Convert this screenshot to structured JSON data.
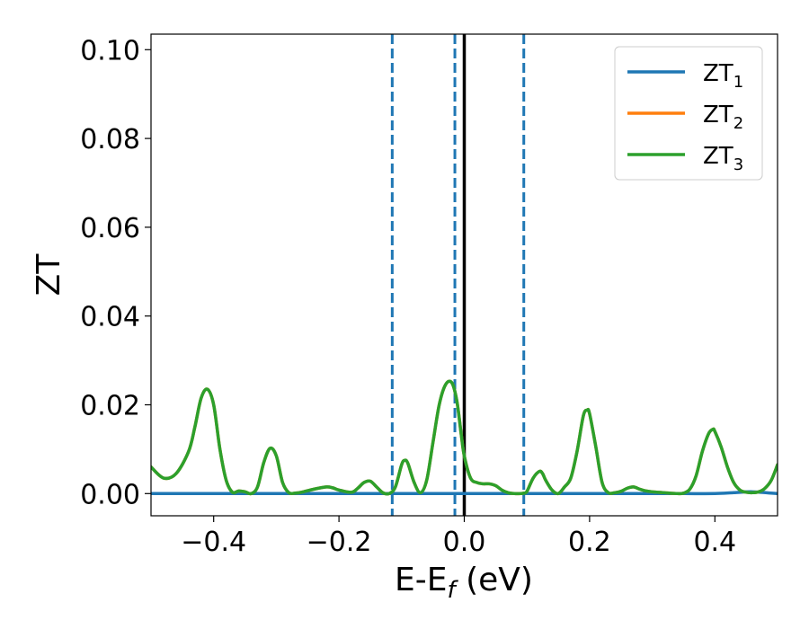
{
  "chart_data": {
    "type": "line",
    "xlabel": "E-E",
    "xlabel_subscript": "f",
    "xlabel_unit": " (eV)",
    "ylabel": "ZT",
    "xlim": [
      -0.5,
      0.5
    ],
    "ylim": [
      -0.005,
      0.1035
    ],
    "xticks": [
      -0.4,
      -0.2,
      0.0,
      0.2,
      0.4
    ],
    "xtick_labels": [
      "−0.4",
      "−0.2",
      "0.0",
      "0.2",
      "0.4"
    ],
    "yticks": [
      0.0,
      0.02,
      0.04,
      0.06,
      0.08,
      0.1
    ],
    "ytick_labels": [
      "0.00",
      "0.02",
      "0.04",
      "0.06",
      "0.08",
      "0.10"
    ],
    "legend_placement": "top-right",
    "grid": false,
    "vertical_lines": [
      {
        "x": -0.115,
        "style": "dashed",
        "color": "#1f77b4"
      },
      {
        "x": -0.015,
        "style": "dashed",
        "color": "#1f77b4"
      },
      {
        "x": 0.0,
        "style": "solid",
        "color": "#000000"
      },
      {
        "x": 0.095,
        "style": "dashed",
        "color": "#1f77b4"
      }
    ],
    "series": [
      {
        "name": "ZT",
        "name_subscript": "1",
        "color": "#1f77b4",
        "x": [
          -0.5,
          -0.45,
          -0.4,
          -0.35,
          -0.3,
          -0.25,
          -0.2,
          -0.15,
          -0.1,
          -0.05,
          0.0,
          0.05,
          0.1,
          0.15,
          0.2,
          0.25,
          0.3,
          0.35,
          0.4,
          0.43,
          0.46,
          0.5
        ],
        "y": [
          0.0,
          0.0,
          0.0,
          0.0,
          0.0,
          0.0,
          0.0,
          0.0,
          0.0,
          0.0,
          0.0,
          0.0,
          0.0,
          0.0,
          0.0,
          0.0,
          0.0,
          0.0,
          0.0,
          0.0002,
          0.0004,
          0.0
        ]
      },
      {
        "name": "ZT",
        "name_subscript": "2",
        "color": "#ff7f0e",
        "x": [
          -0.5,
          -0.48,
          -0.46,
          -0.44,
          -0.43,
          -0.42,
          -0.41,
          -0.4,
          -0.39,
          -0.38,
          -0.37,
          -0.36,
          -0.35,
          -0.34,
          -0.33,
          -0.32,
          -0.31,
          -0.3,
          -0.29,
          -0.28,
          -0.27,
          -0.26,
          -0.24,
          -0.22,
          -0.21,
          -0.2,
          -0.18,
          -0.17,
          -0.16,
          -0.15,
          -0.14,
          -0.13,
          -0.12,
          -0.11,
          -0.1,
          -0.095,
          -0.09,
          -0.08,
          -0.07,
          -0.06,
          -0.05,
          -0.04,
          -0.03,
          -0.02,
          -0.012,
          -0.005,
          0.0,
          0.01,
          0.02,
          0.03,
          0.04,
          0.05,
          0.06,
          0.07,
          0.08,
          0.09,
          0.095,
          0.1,
          0.11,
          0.12,
          0.125,
          0.13,
          0.14,
          0.15,
          0.16,
          0.17,
          0.18,
          0.19,
          0.196,
          0.2,
          0.21,
          0.22,
          0.23,
          0.24,
          0.25,
          0.26,
          0.27,
          0.28,
          0.29,
          0.3,
          0.32,
          0.34,
          0.35,
          0.36,
          0.37,
          0.38,
          0.39,
          0.397,
          0.4,
          0.41,
          0.42,
          0.43,
          0.44,
          0.45,
          0.46,
          0.47,
          0.48,
          0.49,
          0.5
        ],
        "y": [
          0.006,
          0.0035,
          0.0045,
          0.0095,
          0.015,
          0.0215,
          0.0235,
          0.02,
          0.01,
          0.003,
          0.0003,
          0.0006,
          0.0004,
          0.0,
          0.0015,
          0.007,
          0.0102,
          0.0085,
          0.0025,
          0.0002,
          0.0001,
          0.0003,
          0.001,
          0.0015,
          0.0013,
          0.0008,
          0.0003,
          0.0012,
          0.0025,
          0.0028,
          0.0015,
          0.0002,
          0.0,
          0.0015,
          0.0065,
          0.0075,
          0.0068,
          0.0025,
          0.0002,
          0.003,
          0.0115,
          0.02,
          0.0245,
          0.025,
          0.021,
          0.0135,
          0.0085,
          0.0035,
          0.0025,
          0.0022,
          0.0022,
          0.0018,
          0.0008,
          0.0002,
          0.0,
          0.0,
          0.0001,
          0.0005,
          0.0035,
          0.005,
          0.0045,
          0.003,
          0.0008,
          0.0,
          0.0015,
          0.0035,
          0.0095,
          0.0175,
          0.0188,
          0.018,
          0.0105,
          0.0025,
          0.0002,
          0.0002,
          0.0005,
          0.0012,
          0.0015,
          0.001,
          0.0006,
          0.0004,
          0.0002,
          0.0,
          0.0001,
          0.001,
          0.004,
          0.0095,
          0.0135,
          0.0145,
          0.014,
          0.0105,
          0.006,
          0.0025,
          0.0008,
          0.0003,
          0.0002,
          0.0004,
          0.0012,
          0.003,
          0.0065
        ]
      },
      {
        "name": "ZT",
        "name_subscript": "3",
        "color": "#2ca02c",
        "x": [
          -0.5,
          -0.48,
          -0.46,
          -0.44,
          -0.43,
          -0.42,
          -0.41,
          -0.4,
          -0.39,
          -0.38,
          -0.37,
          -0.36,
          -0.35,
          -0.34,
          -0.33,
          -0.32,
          -0.31,
          -0.3,
          -0.29,
          -0.28,
          -0.27,
          -0.26,
          -0.24,
          -0.22,
          -0.21,
          -0.2,
          -0.18,
          -0.17,
          -0.16,
          -0.15,
          -0.14,
          -0.13,
          -0.12,
          -0.11,
          -0.1,
          -0.095,
          -0.09,
          -0.08,
          -0.07,
          -0.06,
          -0.05,
          -0.04,
          -0.03,
          -0.02,
          -0.012,
          -0.005,
          0.0,
          0.01,
          0.02,
          0.03,
          0.04,
          0.05,
          0.06,
          0.07,
          0.08,
          0.09,
          0.095,
          0.1,
          0.11,
          0.12,
          0.125,
          0.13,
          0.14,
          0.15,
          0.16,
          0.17,
          0.18,
          0.19,
          0.196,
          0.2,
          0.21,
          0.22,
          0.23,
          0.24,
          0.25,
          0.26,
          0.27,
          0.28,
          0.29,
          0.3,
          0.32,
          0.34,
          0.35,
          0.36,
          0.37,
          0.38,
          0.39,
          0.397,
          0.4,
          0.41,
          0.42,
          0.43,
          0.44,
          0.45,
          0.46,
          0.47,
          0.48,
          0.49,
          0.5
        ],
        "y": [
          0.006,
          0.0035,
          0.0045,
          0.0095,
          0.015,
          0.0215,
          0.0235,
          0.02,
          0.01,
          0.003,
          0.0003,
          0.0006,
          0.0004,
          0.0,
          0.0015,
          0.007,
          0.0102,
          0.0085,
          0.0025,
          0.0002,
          0.0001,
          0.0003,
          0.001,
          0.0015,
          0.0013,
          0.0008,
          0.0003,
          0.0012,
          0.0025,
          0.0028,
          0.0015,
          0.0002,
          0.0,
          0.0015,
          0.0065,
          0.0075,
          0.0068,
          0.0025,
          0.0002,
          0.003,
          0.0115,
          0.02,
          0.0245,
          0.025,
          0.021,
          0.0135,
          0.0085,
          0.0035,
          0.0025,
          0.0022,
          0.0022,
          0.0018,
          0.0008,
          0.0002,
          0.0,
          0.0,
          0.0001,
          0.0005,
          0.0035,
          0.005,
          0.0045,
          0.003,
          0.0008,
          0.0,
          0.0015,
          0.0035,
          0.0095,
          0.0175,
          0.0188,
          0.018,
          0.0105,
          0.0025,
          0.0002,
          0.0002,
          0.0005,
          0.0012,
          0.0015,
          0.001,
          0.0006,
          0.0004,
          0.0002,
          0.0,
          0.0001,
          0.001,
          0.004,
          0.0095,
          0.0135,
          0.0145,
          0.014,
          0.0105,
          0.006,
          0.0025,
          0.0008,
          0.0003,
          0.0002,
          0.0004,
          0.0012,
          0.003,
          0.0065
        ]
      }
    ]
  }
}
